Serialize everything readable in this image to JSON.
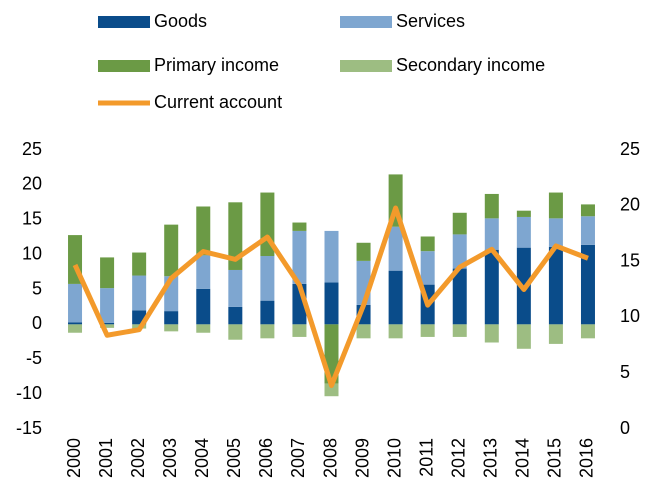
{
  "chart_data": {
    "type": "bar",
    "stacked": true,
    "legend": "top",
    "categories": [
      "2000",
      "2001",
      "2002",
      "2003",
      "2004",
      "2005",
      "2006",
      "2007",
      "2008",
      "2009",
      "2010",
      "2011",
      "2012",
      "2013",
      "2014",
      "2015",
      "2016"
    ],
    "series": [
      {
        "name": "Goods",
        "color": "#0a4c8a",
        "values": [
          0.3,
          0.2,
          2.0,
          1.9,
          5.1,
          2.5,
          3.4,
          5.8,
          6.0,
          2.8,
          7.7,
          5.7,
          8.0,
          10.7,
          11.0,
          11.1,
          11.4
        ]
      },
      {
        "name": "Services",
        "color": "#7ea6d0",
        "values": [
          5.5,
          5.0,
          5.0,
          5.0,
          4.8,
          5.3,
          6.4,
          7.6,
          7.4,
          6.3,
          6.3,
          4.8,
          4.9,
          4.5,
          4.4,
          4.1,
          4.1
        ]
      },
      {
        "name": "Primary income",
        "color": "#6b9a45",
        "values": [
          7.0,
          4.4,
          3.3,
          7.4,
          7.0,
          9.7,
          9.1,
          1.2,
          -8.5,
          2.6,
          7.5,
          2.1,
          3.1,
          3.5,
          0.9,
          3.7,
          1.7
        ]
      },
      {
        "name": "Secondary income",
        "color": "#9dbd82",
        "values": [
          -1.2,
          -0.5,
          -0.6,
          -1.0,
          -1.2,
          -2.2,
          -2.0,
          -1.8,
          -1.8,
          -2.0,
          -2.0,
          -1.8,
          -1.8,
          -2.6,
          -3.5,
          -2.8,
          -2.0
        ]
      },
      {
        "name": "Current account",
        "type": "line",
        "axis": "y2",
        "color": "#f39a2b",
        "values": [
          14.7,
          8.4,
          8.9,
          13.5,
          15.9,
          15.2,
          17.2,
          12.9,
          3.9,
          11.1,
          19.8,
          11.1,
          14.5,
          16.1,
          12.5,
          16.4,
          15.3
        ]
      }
    ],
    "ylim": [
      -15,
      25
    ],
    "yticks": [
      -15,
      -10,
      -5,
      0,
      5,
      10,
      15,
      20,
      25
    ],
    "y2lim": [
      0,
      25
    ],
    "y2ticks": [
      0,
      5,
      10,
      15,
      20,
      25
    ]
  }
}
